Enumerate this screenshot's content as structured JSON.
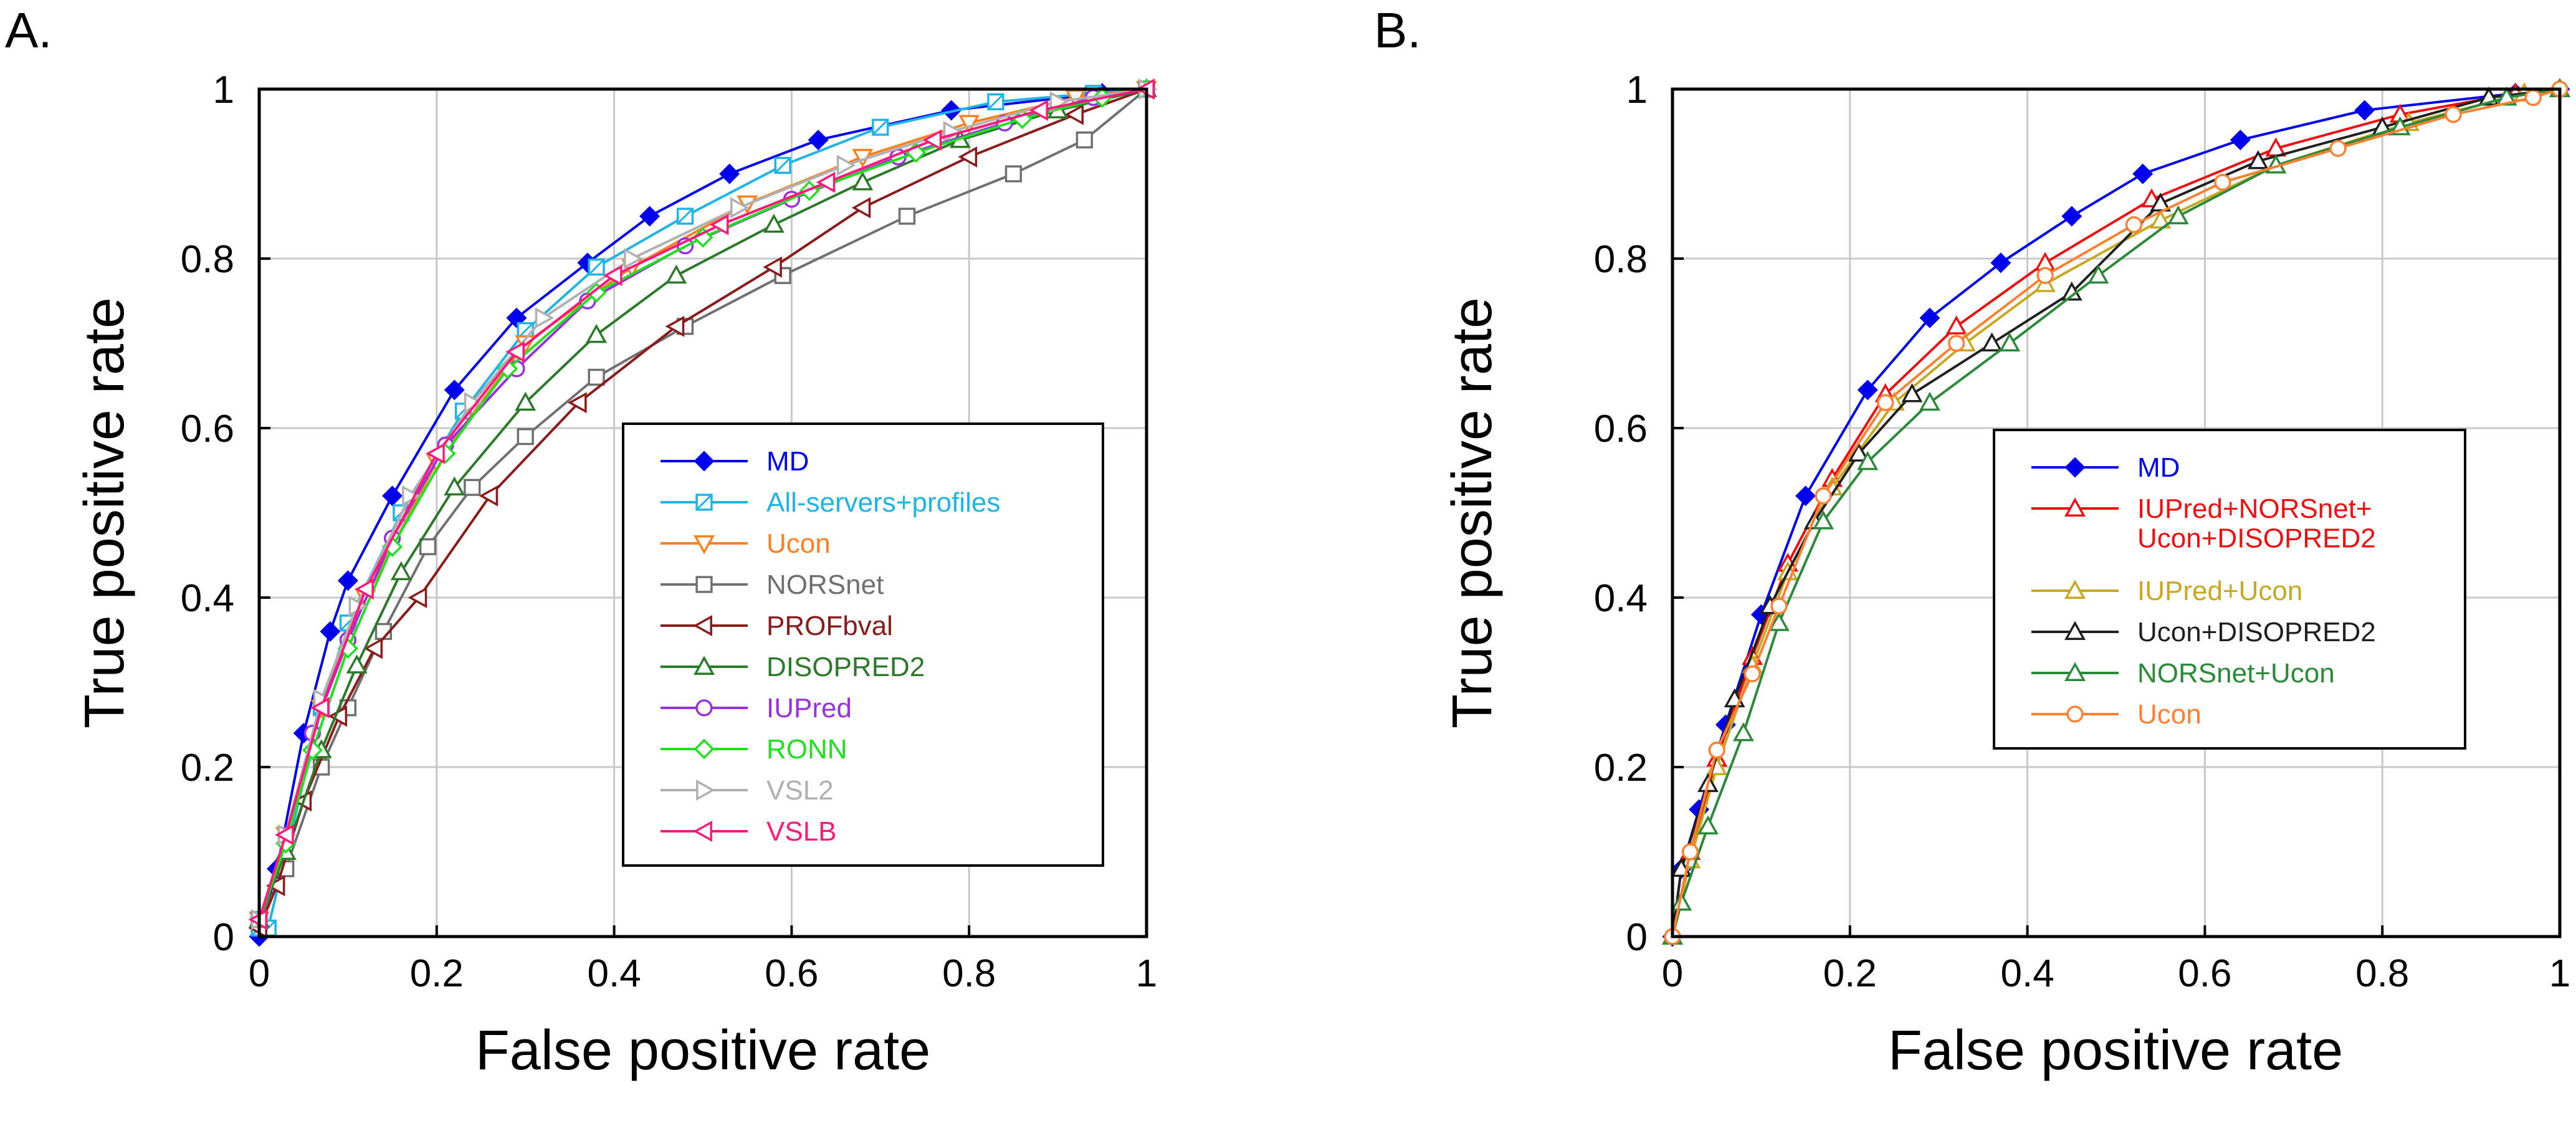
{
  "chart_data": [
    {
      "type": "line",
      "panel_label": "A.",
      "xlabel": "False positive rate",
      "ylabel": "True positive rate",
      "xlim": [
        0,
        1
      ],
      "ylim": [
        0,
        1
      ],
      "x_ticks": [
        "0",
        "0.2",
        "0.4",
        "0.6",
        "0.8",
        "1"
      ],
      "y_ticks": [
        "0",
        "0.2",
        "0.4",
        "0.6",
        "0.8",
        "1"
      ],
      "grid": true,
      "legend_position": "center-right",
      "series": [
        {
          "name": "MD",
          "color": "#0000ee",
          "marker": "diamond-filled",
          "points": [
            [
              0.0,
              0.0
            ],
            [
              0.02,
              0.08
            ],
            [
              0.05,
              0.24
            ],
            [
              0.08,
              0.36
            ],
            [
              0.1,
              0.42
            ],
            [
              0.15,
              0.52
            ],
            [
              0.22,
              0.645
            ],
            [
              0.29,
              0.73
            ],
            [
              0.37,
              0.795
            ],
            [
              0.44,
              0.85
            ],
            [
              0.53,
              0.9
            ],
            [
              0.63,
              0.94
            ],
            [
              0.78,
              0.975
            ],
            [
              0.95,
              0.995
            ],
            [
              1.0,
              1.0
            ]
          ]
        },
        {
          "name": "All-servers+profiles",
          "color": "#1eb4e6",
          "marker": "square-x",
          "points": [
            [
              0.0,
              0.01
            ],
            [
              0.01,
              0.01
            ],
            [
              0.07,
              0.27
            ],
            [
              0.1,
              0.37
            ],
            [
              0.16,
              0.5
            ],
            [
              0.23,
              0.62
            ],
            [
              0.3,
              0.715
            ],
            [
              0.38,
              0.79
            ],
            [
              0.48,
              0.85
            ],
            [
              0.59,
              0.91
            ],
            [
              0.7,
              0.955
            ],
            [
              0.83,
              0.985
            ],
            [
              0.94,
              0.995
            ],
            [
              1.0,
              1.0
            ]
          ]
        },
        {
          "name": "Ucon",
          "color": "#ff8020",
          "marker": "triangle-down",
          "points": [
            [
              0.0,
              0.02
            ],
            [
              0.03,
              0.12
            ],
            [
              0.07,
              0.27
            ],
            [
              0.12,
              0.4
            ],
            [
              0.2,
              0.56
            ],
            [
              0.3,
              0.7
            ],
            [
              0.42,
              0.79
            ],
            [
              0.55,
              0.865
            ],
            [
              0.68,
              0.92
            ],
            [
              0.8,
              0.96
            ],
            [
              0.92,
              0.99
            ],
            [
              1.0,
              1.0
            ]
          ]
        },
        {
          "name": "NORSnet",
          "color": "#707070",
          "marker": "square",
          "points": [
            [
              0.0,
              0.02
            ],
            [
              0.03,
              0.08
            ],
            [
              0.07,
              0.2
            ],
            [
              0.1,
              0.27
            ],
            [
              0.14,
              0.36
            ],
            [
              0.19,
              0.46
            ],
            [
              0.24,
              0.53
            ],
            [
              0.3,
              0.59
            ],
            [
              0.38,
              0.66
            ],
            [
              0.48,
              0.72
            ],
            [
              0.59,
              0.78
            ],
            [
              0.73,
              0.85
            ],
            [
              0.85,
              0.9
            ],
            [
              0.93,
              0.94
            ],
            [
              1.0,
              1.0
            ]
          ]
        },
        {
          "name": "PROFbval",
          "color": "#8b1a1a",
          "marker": "triangle-left",
          "points": [
            [
              0.0,
              0.01
            ],
            [
              0.02,
              0.06
            ],
            [
              0.05,
              0.16
            ],
            [
              0.09,
              0.26
            ],
            [
              0.13,
              0.34
            ],
            [
              0.18,
              0.4
            ],
            [
              0.26,
              0.52
            ],
            [
              0.36,
              0.63
            ],
            [
              0.47,
              0.72
            ],
            [
              0.58,
              0.79
            ],
            [
              0.68,
              0.86
            ],
            [
              0.8,
              0.92
            ],
            [
              0.92,
              0.97
            ],
            [
              1.0,
              1.0
            ]
          ]
        },
        {
          "name": "DISOPRED2",
          "color": "#2a7a2a",
          "marker": "triangle-up",
          "points": [
            [
              0.0,
              0.02
            ],
            [
              0.03,
              0.1
            ],
            [
              0.07,
              0.22
            ],
            [
              0.11,
              0.32
            ],
            [
              0.16,
              0.43
            ],
            [
              0.22,
              0.53
            ],
            [
              0.3,
              0.63
            ],
            [
              0.38,
              0.71
            ],
            [
              0.47,
              0.78
            ],
            [
              0.58,
              0.84
            ],
            [
              0.68,
              0.89
            ],
            [
              0.79,
              0.94
            ],
            [
              0.9,
              0.975
            ],
            [
              1.0,
              1.0
            ]
          ]
        },
        {
          "name": "IUPred",
          "color": "#9a30e0",
          "marker": "circle",
          "points": [
            [
              0.0,
              0.02
            ],
            [
              0.03,
              0.12
            ],
            [
              0.06,
              0.24
            ],
            [
              0.1,
              0.35
            ],
            [
              0.15,
              0.47
            ],
            [
              0.21,
              0.58
            ],
            [
              0.29,
              0.67
            ],
            [
              0.37,
              0.75
            ],
            [
              0.48,
              0.815
            ],
            [
              0.6,
              0.87
            ],
            [
              0.72,
              0.92
            ],
            [
              0.84,
              0.96
            ],
            [
              0.94,
              0.99
            ],
            [
              1.0,
              1.0
            ]
          ]
        },
        {
          "name": "RONN",
          "color": "#20e020",
          "marker": "diamond",
          "points": [
            [
              0.0,
              0.02
            ],
            [
              0.03,
              0.11
            ],
            [
              0.06,
              0.22
            ],
            [
              0.1,
              0.34
            ],
            [
              0.15,
              0.46
            ],
            [
              0.21,
              0.57
            ],
            [
              0.28,
              0.67
            ],
            [
              0.38,
              0.76
            ],
            [
              0.5,
              0.825
            ],
            [
              0.62,
              0.88
            ],
            [
              0.74,
              0.925
            ],
            [
              0.86,
              0.965
            ],
            [
              0.95,
              0.99
            ],
            [
              1.0,
              1.0
            ]
          ]
        },
        {
          "name": "VSL2",
          "color": "#b0b0b0",
          "marker": "triangle-right",
          "points": [
            [
              0.0,
              0.02
            ],
            [
              0.03,
              0.12
            ],
            [
              0.07,
              0.28
            ],
            [
              0.11,
              0.39
            ],
            [
              0.17,
              0.52
            ],
            [
              0.24,
              0.63
            ],
            [
              0.32,
              0.73
            ],
            [
              0.42,
              0.8
            ],
            [
              0.54,
              0.86
            ],
            [
              0.66,
              0.91
            ],
            [
              0.78,
              0.95
            ],
            [
              0.9,
              0.985
            ],
            [
              1.0,
              1.0
            ]
          ]
        },
        {
          "name": "VSLB",
          "color": "#ff1a7a",
          "marker": "triangle-left",
          "points": [
            [
              0.0,
              0.02
            ],
            [
              0.03,
              0.12
            ],
            [
              0.07,
              0.27
            ],
            [
              0.12,
              0.41
            ],
            [
              0.2,
              0.57
            ],
            [
              0.29,
              0.69
            ],
            [
              0.4,
              0.78
            ],
            [
              0.52,
              0.84
            ],
            [
              0.64,
              0.89
            ],
            [
              0.76,
              0.94
            ],
            [
              0.88,
              0.975
            ],
            [
              1.0,
              1.0
            ]
          ]
        }
      ]
    },
    {
      "type": "line",
      "panel_label": "B.",
      "xlabel": "False positive rate",
      "ylabel": "True positive rate",
      "xlim": [
        0,
        1
      ],
      "ylim": [
        0,
        1
      ],
      "x_ticks": [
        "0",
        "0.2",
        "0.4",
        "0.6",
        "0.8",
        "1"
      ],
      "y_ticks": [
        "0",
        "0.2",
        "0.4",
        "0.6",
        "0.8",
        "1"
      ],
      "grid": true,
      "legend_position": "center-right",
      "series": [
        {
          "name": "MD",
          "color": "#0000ee",
          "marker": "diamond-filled",
          "points": [
            [
              0.0,
              0.0
            ],
            [
              0.01,
              0.08
            ],
            [
              0.03,
              0.15
            ],
            [
              0.06,
              0.25
            ],
            [
              0.1,
              0.38
            ],
            [
              0.15,
              0.52
            ],
            [
              0.22,
              0.645
            ],
            [
              0.29,
              0.73
            ],
            [
              0.37,
              0.795
            ],
            [
              0.45,
              0.85
            ],
            [
              0.53,
              0.9
            ],
            [
              0.64,
              0.94
            ],
            [
              0.78,
              0.975
            ],
            [
              0.95,
              0.995
            ],
            [
              1.0,
              1.0
            ]
          ]
        },
        {
          "name": "IUPred+NORSnet+ Ucon+DISOPRED2",
          "lines": [
            "IUPred+NORSnet+",
            "Ucon+DISOPRED2"
          ],
          "color": "#ee1010",
          "marker": "triangle-up",
          "points": [
            [
              0.0,
              0.0
            ],
            [
              0.02,
              0.1
            ],
            [
              0.05,
              0.21
            ],
            [
              0.09,
              0.33
            ],
            [
              0.13,
              0.44
            ],
            [
              0.18,
              0.54
            ],
            [
              0.24,
              0.64
            ],
            [
              0.32,
              0.72
            ],
            [
              0.42,
              0.795
            ],
            [
              0.54,
              0.87
            ],
            [
              0.68,
              0.93
            ],
            [
              0.82,
              0.97
            ],
            [
              0.95,
              0.995
            ],
            [
              1.0,
              1.0
            ]
          ]
        },
        {
          "name": "IUPred+Ucon",
          "color": "#c8a820",
          "marker": "triangle-up",
          "points": [
            [
              0.0,
              0.0
            ],
            [
              0.02,
              0.09
            ],
            [
              0.05,
              0.2
            ],
            [
              0.09,
              0.32
            ],
            [
              0.13,
              0.43
            ],
            [
              0.18,
              0.53
            ],
            [
              0.25,
              0.63
            ],
            [
              0.33,
              0.7
            ],
            [
              0.42,
              0.77
            ],
            [
              0.55,
              0.845
            ],
            [
              0.68,
              0.91
            ],
            [
              0.83,
              0.96
            ],
            [
              0.96,
              0.995
            ],
            [
              1.0,
              1.0
            ]
          ]
        },
        {
          "name": "Ucon+DISOPRED2",
          "color": "#202020",
          "marker": "triangle-up",
          "points": [
            [
              0.0,
              0.0
            ],
            [
              0.01,
              0.08
            ],
            [
              0.04,
              0.18
            ],
            [
              0.07,
              0.28
            ],
            [
              0.11,
              0.39
            ],
            [
              0.16,
              0.49
            ],
            [
              0.21,
              0.57
            ],
            [
              0.27,
              0.64
            ],
            [
              0.36,
              0.7
            ],
            [
              0.45,
              0.76
            ],
            [
              0.55,
              0.865
            ],
            [
              0.66,
              0.915
            ],
            [
              0.8,
              0.955
            ],
            [
              0.92,
              0.99
            ],
            [
              1.0,
              1.0
            ]
          ]
        },
        {
          "name": "NORSnet+Ucon",
          "color": "#2a8a3a",
          "marker": "triangle-up",
          "points": [
            [
              0.0,
              0.0
            ],
            [
              0.01,
              0.04
            ],
            [
              0.04,
              0.13
            ],
            [
              0.08,
              0.24
            ],
            [
              0.12,
              0.37
            ],
            [
              0.17,
              0.49
            ],
            [
              0.22,
              0.56
            ],
            [
              0.29,
              0.63
            ],
            [
              0.38,
              0.7
            ],
            [
              0.48,
              0.78
            ],
            [
              0.57,
              0.85
            ],
            [
              0.68,
              0.91
            ],
            [
              0.82,
              0.955
            ],
            [
              0.94,
              0.99
            ],
            [
              1.0,
              1.0
            ]
          ]
        },
        {
          "name": "Ucon",
          "color": "#ff8030",
          "marker": "circle",
          "points": [
            [
              0.0,
              0.0
            ],
            [
              0.02,
              0.1
            ],
            [
              0.05,
              0.22
            ],
            [
              0.09,
              0.31
            ],
            [
              0.12,
              0.39
            ],
            [
              0.17,
              0.52
            ],
            [
              0.24,
              0.63
            ],
            [
              0.32,
              0.7
            ],
            [
              0.42,
              0.78
            ],
            [
              0.52,
              0.84
            ],
            [
              0.62,
              0.89
            ],
            [
              0.75,
              0.93
            ],
            [
              0.88,
              0.97
            ],
            [
              0.97,
              0.99
            ],
            [
              1.0,
              1.0
            ]
          ]
        }
      ]
    }
  ]
}
